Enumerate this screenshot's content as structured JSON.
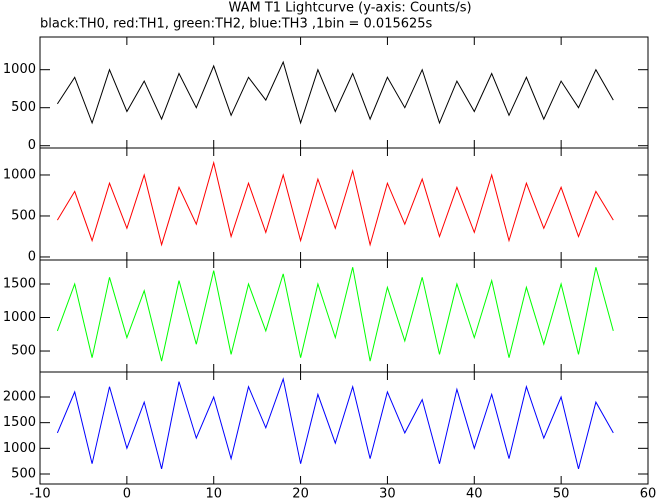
{
  "chart_data": [
    {
      "type": "line",
      "title": "WAM T1 Lightcurve (y-axis: Counts/s)",
      "subtitle": "black:TH0, red:TH1, green:TH2, blue:TH3 ,1bin = 0.015625s",
      "x": [
        -8,
        -6,
        -4,
        -2,
        0,
        2,
        4,
        6,
        8,
        10,
        12,
        14,
        16,
        18,
        20,
        22,
        24,
        26,
        28,
        30,
        32,
        34,
        36,
        38,
        40,
        42,
        44,
        46,
        48,
        50,
        52,
        54,
        56
      ],
      "color": "#000000",
      "xlim": [
        -10,
        60
      ],
      "ylim": [
        -30,
        1430
      ],
      "yticks": [
        0,
        500,
        1000
      ],
      "values": [
        550,
        900,
        300,
        1000,
        450,
        850,
        350,
        950,
        500,
        1050,
        400,
        900,
        600,
        1100,
        300,
        1000,
        450,
        950,
        350,
        900,
        500,
        1000,
        300,
        850,
        450,
        950,
        400,
        900,
        350,
        850,
        500,
        1000,
        600
      ]
    },
    {
      "type": "line",
      "x": [
        -8,
        -6,
        -4,
        -2,
        0,
        2,
        4,
        6,
        8,
        10,
        12,
        14,
        16,
        18,
        20,
        22,
        24,
        26,
        28,
        30,
        32,
        34,
        36,
        38,
        40,
        42,
        44,
        46,
        48,
        50,
        52,
        54,
        56
      ],
      "color": "#ff0000",
      "xlim": [
        -10,
        60
      ],
      "ylim": [
        -37,
        1329
      ],
      "yticks": [
        0,
        500,
        1000
      ],
      "values": [
        450,
        800,
        200,
        900,
        350,
        1000,
        150,
        850,
        400,
        1150,
        250,
        900,
        300,
        1000,
        200,
        950,
        350,
        1050,
        150,
        900,
        400,
        950,
        250,
        850,
        300,
        1000,
        200,
        900,
        350,
        850,
        250,
        800,
        450
      ]
    },
    {
      "type": "line",
      "x": [
        -8,
        -6,
        -4,
        -2,
        0,
        2,
        4,
        6,
        8,
        10,
        12,
        14,
        16,
        18,
        20,
        22,
        24,
        26,
        28,
        30,
        32,
        34,
        36,
        38,
        40,
        42,
        44,
        46,
        48,
        50,
        52,
        54,
        56
      ],
      "color": "#00ff00",
      "xlim": [
        -10,
        60
      ],
      "ylim": [
        187,
        1858
      ],
      "yticks": [
        500,
        1000,
        1500
      ],
      "values": [
        800,
        1500,
        400,
        1600,
        700,
        1400,
        350,
        1550,
        600,
        1700,
        450,
        1500,
        800,
        1650,
        400,
        1500,
        700,
        1750,
        350,
        1450,
        650,
        1600,
        450,
        1500,
        700,
        1550,
        400,
        1450,
        600,
        1500,
        450,
        1750,
        800
      ]
    },
    {
      "type": "line",
      "x": [
        -8,
        -6,
        -4,
        -2,
        0,
        2,
        4,
        6,
        8,
        10,
        12,
        14,
        16,
        18,
        20,
        22,
        24,
        26,
        28,
        30,
        32,
        34,
        36,
        38,
        40,
        42,
        44,
        46,
        48,
        50,
        52,
        54,
        56
      ],
      "color": "#0000ff",
      "xlim": [
        -10,
        60
      ],
      "ylim": [
        305,
        2487
      ],
      "yticks": [
        500,
        1000,
        1500,
        2000
      ],
      "xticks": [
        -10,
        0,
        10,
        20,
        30,
        40,
        50,
        60
      ],
      "values": [
        1300,
        2100,
        700,
        2200,
        1000,
        1900,
        600,
        2300,
        1200,
        2000,
        800,
        2200,
        1400,
        2350,
        700,
        2050,
        1100,
        2200,
        800,
        2100,
        1300,
        1950,
        700,
        2150,
        1000,
        2050,
        800,
        2200,
        1200,
        2000,
        600,
        1900,
        1300
      ]
    }
  ]
}
